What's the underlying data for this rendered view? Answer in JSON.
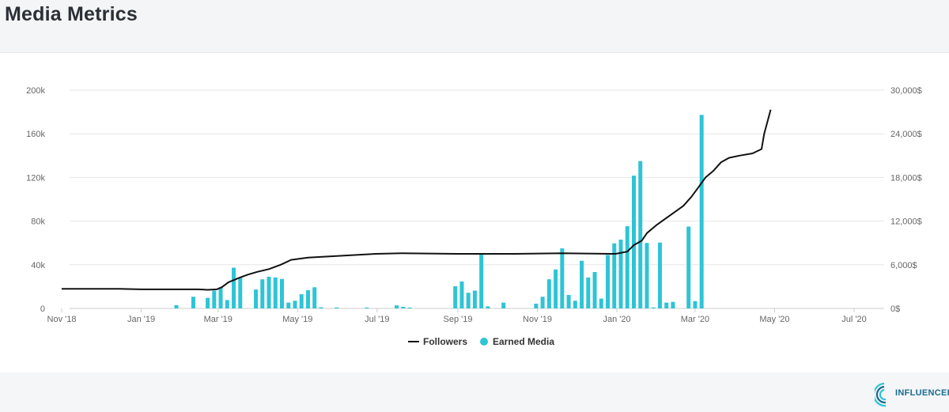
{
  "page": {
    "title": "Media Metrics"
  },
  "logo": {
    "text": "INFLUENCER"
  },
  "colors": {
    "followers": "#111111",
    "earned_media": "#2ec4d6",
    "grid": "#e6e6e6"
  },
  "chart_data": {
    "type": "bar",
    "title": "",
    "x_ticks": [
      "Nov '18",
      "Jan '19",
      "Mar '19",
      "May '19",
      "Jul '19",
      "Sep '19",
      "Nov '19",
      "Jan '20",
      "Mar '20",
      "May '20",
      "Jul '20"
    ],
    "y_left": {
      "ticks": [
        "0",
        "40k",
        "80k",
        "120k",
        "160k",
        "200k"
      ],
      "range": [
        0,
        200000
      ]
    },
    "y_right": {
      "ticks": [
        "0$",
        "6,000$",
        "12,000$",
        "18,000$",
        "24,000$",
        "30,000$"
      ],
      "range": [
        0,
        30000
      ]
    },
    "legend": {
      "position": "bottom",
      "items": [
        "Followers",
        "Earned Media"
      ]
    },
    "grid": true,
    "series": [
      {
        "name": "Earned Media",
        "type": "bar",
        "axis": "right",
        "points": [
          [
            "2019-01-28",
            450
          ],
          [
            "2019-02-10",
            1600
          ],
          [
            "2019-02-21",
            1450
          ],
          [
            "2019-02-26",
            2450
          ],
          [
            "2019-03-03",
            2900
          ],
          [
            "2019-03-08",
            1150
          ],
          [
            "2019-03-13",
            5600
          ],
          [
            "2019-03-18",
            4250
          ],
          [
            "2019-03-30",
            2600
          ],
          [
            "2019-04-04",
            4000
          ],
          [
            "2019-04-09",
            4350
          ],
          [
            "2019-04-14",
            4250
          ],
          [
            "2019-04-19",
            4050
          ],
          [
            "2019-04-24",
            800
          ],
          [
            "2019-04-29",
            1050
          ],
          [
            "2019-05-04",
            1950
          ],
          [
            "2019-05-09",
            2500
          ],
          [
            "2019-05-14",
            2900
          ],
          [
            "2019-05-19",
            150
          ],
          [
            "2019-05-31",
            130
          ],
          [
            "2019-06-23",
            120
          ],
          [
            "2019-07-16",
            420
          ],
          [
            "2019-07-21",
            220
          ],
          [
            "2019-07-26",
            120
          ],
          [
            "2019-08-30",
            3050
          ],
          [
            "2019-09-04",
            3700
          ],
          [
            "2019-09-09",
            2150
          ],
          [
            "2019-09-14",
            2450
          ],
          [
            "2019-09-19",
            7600
          ],
          [
            "2019-09-24",
            280
          ],
          [
            "2019-10-06",
            800
          ],
          [
            "2019-10-31",
            650
          ],
          [
            "2019-11-05",
            1600
          ],
          [
            "2019-11-10",
            4000
          ],
          [
            "2019-11-15",
            5350
          ],
          [
            "2019-11-20",
            8250
          ],
          [
            "2019-11-25",
            1850
          ],
          [
            "2019-11-30",
            1050
          ],
          [
            "2019-12-05",
            6550
          ],
          [
            "2019-12-10",
            4250
          ],
          [
            "2019-12-15",
            5000
          ],
          [
            "2019-12-20",
            1350
          ],
          [
            "2019-12-25",
            7350
          ],
          [
            "2019-12-30",
            8950
          ],
          [
            "2020-01-04",
            9450
          ],
          [
            "2020-01-09",
            11300
          ],
          [
            "2020-01-14",
            18250
          ],
          [
            "2020-01-19",
            20250
          ],
          [
            "2020-01-24",
            9000
          ],
          [
            "2020-01-29",
            130
          ],
          [
            "2020-02-03",
            9050
          ],
          [
            "2020-02-08",
            800
          ],
          [
            "2020-02-13",
            900
          ],
          [
            "2020-02-25",
            11250
          ],
          [
            "2020-03-01",
            1000
          ],
          [
            "2020-03-06",
            26600
          ]
        ]
      },
      {
        "name": "Followers",
        "type": "line",
        "axis": "left",
        "points": [
          [
            "2018-11-01",
            18000
          ],
          [
            "2018-12-15",
            18000
          ],
          [
            "2019-01-01",
            17500
          ],
          [
            "2019-02-14",
            17500
          ],
          [
            "2019-02-21",
            17000
          ],
          [
            "2019-02-28",
            17500
          ],
          [
            "2019-03-04",
            19500
          ],
          [
            "2019-03-09",
            24000
          ],
          [
            "2019-03-17",
            28000
          ],
          [
            "2019-03-24",
            31000
          ],
          [
            "2019-03-31",
            33500
          ],
          [
            "2019-04-09",
            36000
          ],
          [
            "2019-04-18",
            40000
          ],
          [
            "2019-04-26",
            44500
          ],
          [
            "2019-05-09",
            46500
          ],
          [
            "2019-05-31",
            48000
          ],
          [
            "2019-06-15",
            49000
          ],
          [
            "2019-06-30",
            50000
          ],
          [
            "2019-07-20",
            50500
          ],
          [
            "2019-08-31",
            50000
          ],
          [
            "2019-10-15",
            50000
          ],
          [
            "2019-11-20",
            50500
          ],
          [
            "2019-12-31",
            50000
          ],
          [
            "2020-01-09",
            52000
          ],
          [
            "2020-01-14",
            58000
          ],
          [
            "2020-01-20",
            62000
          ],
          [
            "2020-01-24",
            69000
          ],
          [
            "2020-01-31",
            76000
          ],
          [
            "2020-02-07",
            82000
          ],
          [
            "2020-02-14",
            88000
          ],
          [
            "2020-02-21",
            94000
          ],
          [
            "2020-02-27",
            102000
          ],
          [
            "2020-03-03",
            110000
          ],
          [
            "2020-03-09",
            120000
          ],
          [
            "2020-03-15",
            126000
          ],
          [
            "2020-03-21",
            134000
          ],
          [
            "2020-03-27",
            138000
          ],
          [
            "2020-04-04",
            140000
          ],
          [
            "2020-04-14",
            142000
          ],
          [
            "2020-04-21",
            146000
          ],
          [
            "2020-04-23",
            160000
          ],
          [
            "2020-04-28",
            182000
          ]
        ]
      }
    ]
  }
}
